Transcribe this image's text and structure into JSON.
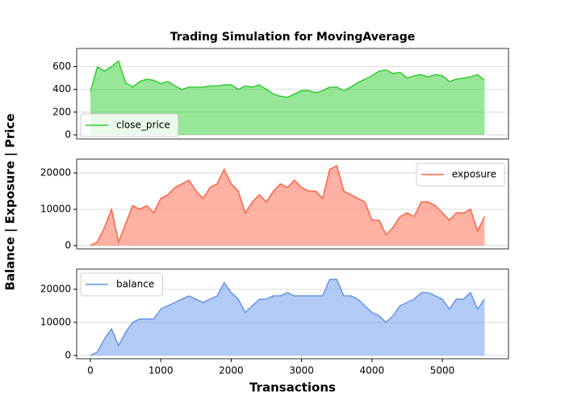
{
  "chart_data": [
    {
      "type": "area",
      "title": "Trading Simulation for MovingAverage",
      "x": [
        0,
        100,
        200,
        300,
        400,
        500,
        600,
        700,
        800,
        900,
        1000,
        1100,
        1200,
        1300,
        1400,
        1500,
        1600,
        1700,
        1800,
        1900,
        2000,
        2100,
        2200,
        2300,
        2400,
        2500,
        2600,
        2700,
        2800,
        2900,
        3000,
        3100,
        3200,
        3300,
        3400,
        3500,
        3600,
        3700,
        3800,
        3900,
        4000,
        4100,
        4200,
        4300,
        4400,
        4500,
        4600,
        4700,
        4800,
        4900,
        5000,
        5100,
        5200,
        5300,
        5400,
        5500,
        5600
      ],
      "series": [
        {
          "name": "close_price",
          "color": "#32cd32",
          "values": [
            380,
            600,
            560,
            600,
            650,
            460,
            420,
            470,
            490,
            480,
            450,
            470,
            430,
            400,
            420,
            420,
            420,
            430,
            430,
            440,
            440,
            400,
            430,
            420,
            440,
            400,
            360,
            340,
            330,
            360,
            390,
            390,
            370,
            390,
            420,
            420,
            390,
            420,
            460,
            490,
            520,
            560,
            570,
            540,
            550,
            500,
            520,
            530,
            510,
            530,
            520,
            470,
            490,
            500,
            510,
            530,
            480
          ]
        }
      ],
      "xlim": [
        -195,
        5940
      ],
      "ylim": [
        -36,
        760
      ],
      "yticks": [
        0,
        200,
        400,
        600
      ],
      "grid": true,
      "legend": "lower left"
    },
    {
      "type": "area",
      "ylabel": "Balance | Exposure | Price",
      "x": [
        0,
        100,
        200,
        300,
        400,
        500,
        600,
        700,
        800,
        900,
        1000,
        1100,
        1200,
        1300,
        1400,
        1500,
        1600,
        1700,
        1800,
        1900,
        2000,
        2100,
        2200,
        2300,
        2400,
        2500,
        2600,
        2700,
        2800,
        2900,
        3000,
        3100,
        3200,
        3300,
        3400,
        3500,
        3600,
        3700,
        3800,
        3900,
        4000,
        4100,
        4200,
        4300,
        4400,
        4500,
        4600,
        4700,
        4800,
        4900,
        5000,
        5100,
        5200,
        5300,
        5400,
        5500,
        5600
      ],
      "series": [
        {
          "name": "exposure",
          "color": "#ff6347",
          "values": [
            0,
            1000,
            5000,
            10000,
            1000,
            6000,
            11000,
            10000,
            11000,
            9000,
            13000,
            14000,
            16000,
            17000,
            18000,
            15000,
            13000,
            16000,
            17000,
            21000,
            17000,
            15000,
            9000,
            12000,
            14000,
            12000,
            15000,
            17000,
            16000,
            18000,
            16000,
            15000,
            15000,
            13000,
            21000,
            22000,
            15000,
            14000,
            13000,
            12000,
            7000,
            7000,
            3000,
            5000,
            8000,
            9000,
            8000,
            12000,
            12000,
            11000,
            9000,
            7000,
            9000,
            9000,
            10000,
            4000,
            8000
          ]
        }
      ],
      "xlim": [
        -195,
        5940
      ],
      "ylim": [
        -900,
        23800
      ],
      "yticks": [
        0,
        10000,
        20000
      ],
      "grid": true,
      "legend": "upper right"
    },
    {
      "type": "area",
      "xlabel": "Transactions",
      "x": [
        0,
        100,
        200,
        300,
        400,
        500,
        600,
        700,
        800,
        900,
        1000,
        1100,
        1200,
        1300,
        1400,
        1500,
        1600,
        1700,
        1800,
        1900,
        2000,
        2100,
        2200,
        2300,
        2400,
        2500,
        2600,
        2700,
        2800,
        2900,
        3000,
        3100,
        3200,
        3300,
        3400,
        3500,
        3600,
        3700,
        3800,
        3900,
        4000,
        4100,
        4200,
        4300,
        4400,
        4500,
        4600,
        4700,
        4800,
        4900,
        5000,
        5100,
        5200,
        5300,
        5400,
        5500,
        5600
      ],
      "series": [
        {
          "name": "balance",
          "color": "#6495ed",
          "values": [
            0,
            1000,
            5000,
            8000,
            3000,
            7000,
            10000,
            11000,
            11000,
            11000,
            14000,
            15000,
            16000,
            17000,
            18000,
            17000,
            16000,
            17000,
            18000,
            22000,
            19000,
            17000,
            13000,
            15000,
            17000,
            17000,
            18000,
            18000,
            19000,
            18000,
            18000,
            18000,
            18000,
            18000,
            23000,
            23000,
            18000,
            18000,
            17000,
            15000,
            13000,
            12000,
            10000,
            12000,
            15000,
            16000,
            17000,
            19000,
            19000,
            18000,
            17000,
            14000,
            17000,
            17000,
            19000,
            14000,
            17000
          ]
        }
      ],
      "xlim": [
        -195,
        5940
      ],
      "ylim": [
        -1000,
        26100
      ],
      "xticks": [
        0,
        1000,
        2000,
        3000,
        4000,
        5000
      ],
      "yticks": [
        0,
        10000,
        20000
      ],
      "grid": true,
      "legend": "upper left"
    }
  ]
}
